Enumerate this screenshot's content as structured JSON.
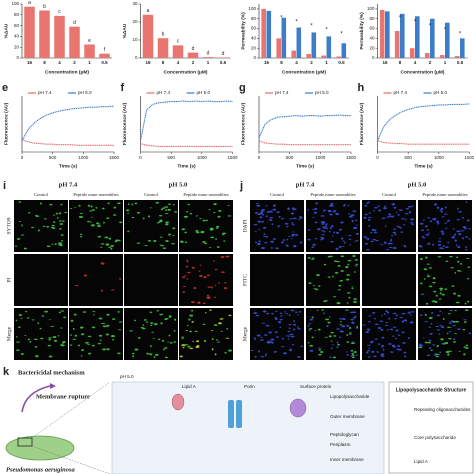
{
  "chart_data": [
    {
      "type": "bar",
      "y_label": "%ΔAU",
      "x_label": "Concentration (μM)",
      "categories": [
        "16",
        "8",
        "4",
        "2",
        "1",
        "0.5"
      ],
      "values": [
        95,
        88,
        78,
        58,
        25,
        8
      ],
      "annotations": [
        "a",
        "b",
        "c",
        "d",
        "e",
        "f"
      ],
      "color": "#e8756f",
      "ylim": [
        0,
        100
      ],
      "yticks": [
        0,
        20,
        40,
        60,
        80,
        100
      ]
    },
    {
      "type": "bar",
      "y_label": "%ΔAU",
      "x_label": "Concentration (μM)",
      "categories": [
        "16",
        "8",
        "4",
        "2",
        "1",
        "0.5"
      ],
      "values": [
        24,
        11,
        7,
        3,
        0.5,
        0.3
      ],
      "annotations": [
        "a",
        "b",
        "c",
        "d",
        "d",
        "d"
      ],
      "color": "#e8756f",
      "ylim": [
        0,
        30
      ],
      "yticks": [
        0,
        10,
        20,
        30
      ]
    },
    {
      "type": "groupbar",
      "y_label": "Permeability (%)",
      "x_label": "Concentration (μM)",
      "categories": [
        "16",
        "8",
        "4",
        "2",
        "1",
        "0.5"
      ],
      "series": [
        {
          "color": "#e8756f",
          "values": [
            100,
            40,
            15,
            8,
            5,
            3
          ]
        },
        {
          "color": "#3d7cc9",
          "values": [
            96,
            82,
            62,
            52,
            44,
            30
          ]
        }
      ],
      "annotations": [
        "*",
        "*",
        "*",
        "*",
        "*"
      ],
      "ylim": [
        0,
        110
      ],
      "yticks": [
        0,
        20,
        40,
        60,
        80,
        100
      ]
    },
    {
      "type": "groupbar",
      "y_label": "Permeability (%)",
      "x_label": "Concentration (μM)",
      "categories": [
        "16",
        "8",
        "4",
        "2",
        "1",
        "0.5"
      ],
      "series": [
        {
          "color": "#e8756f",
          "values": [
            98,
            55,
            20,
            10,
            6,
            4
          ]
        },
        {
          "color": "#3d7cc9",
          "values": [
            95,
            90,
            85,
            80,
            72,
            40
          ]
        }
      ],
      "annotations": [
        "*",
        "*",
        "*",
        "*",
        "*"
      ],
      "ylim": [
        0,
        110
      ],
      "yticks": [
        0,
        20,
        40,
        60,
        80,
        100
      ]
    },
    {
      "type": "line",
      "panel_label": "e",
      "y_label": "Fluorescence (AU)",
      "x_label": "Time (s)",
      "x": [
        0,
        100,
        200,
        300,
        400,
        500,
        600,
        700,
        800,
        900,
        1000,
        1100,
        1200,
        1300,
        1400,
        1500
      ],
      "series": [
        {
          "name": "pH 7.4",
          "color": "#e26a6a",
          "values": [
            22,
            18,
            16,
            15,
            14,
            14,
            13,
            13,
            13,
            12,
            12,
            12,
            12,
            12,
            12,
            12
          ]
        },
        {
          "name": "pH 5.0",
          "color": "#3d7cc9",
          "values": [
            20,
            40,
            52,
            60,
            66,
            70,
            73,
            75,
            77,
            78,
            79,
            80,
            80,
            81,
            81,
            82
          ]
        }
      ],
      "xlim": [
        0,
        1500
      ],
      "xticks": [
        0,
        500,
        1000,
        1500
      ],
      "ylim": [
        0,
        100
      ]
    },
    {
      "type": "line",
      "panel_label": "f",
      "y_label": "Fluorescence (AU)",
      "x_label": "Time (s)",
      "x": [
        0,
        100,
        200,
        300,
        400,
        500,
        600,
        700,
        800,
        900,
        1000,
        1100,
        1200,
        1300,
        1400,
        1500
      ],
      "series": [
        {
          "name": "pH 7.4",
          "color": "#e26a6a",
          "values": [
            15,
            12,
            11,
            10,
            10,
            10,
            10,
            10,
            10,
            10,
            10,
            10,
            10,
            10,
            10,
            10
          ]
        },
        {
          "name": "pH 5.0",
          "color": "#3d7cc9",
          "values": [
            20,
            75,
            85,
            88,
            89,
            90,
            90,
            91,
            90,
            91,
            90,
            91,
            90,
            90,
            91,
            90
          ]
        }
      ],
      "xlim": [
        0,
        1500
      ],
      "xticks": [
        0,
        500,
        1000,
        1500
      ],
      "ylim": [
        0,
        100
      ]
    },
    {
      "type": "line",
      "panel_label": "g",
      "y_label": "Fluorescence (AU)",
      "x_label": "Time (s)",
      "x": [
        0,
        100,
        200,
        300,
        400,
        500,
        600,
        700,
        800,
        900,
        1000,
        1100,
        1200,
        1300,
        1400,
        1500
      ],
      "series": [
        {
          "name": "pH 7.4",
          "color": "#e26a6a",
          "values": [
            20,
            16,
            15,
            14,
            14,
            13,
            13,
            13,
            13,
            13,
            13,
            13,
            13,
            13,
            13,
            13
          ]
        },
        {
          "name": "pH 5.0",
          "color": "#3d7cc9",
          "values": [
            25,
            50,
            58,
            62,
            63,
            64,
            65,
            64,
            65,
            65,
            64,
            65,
            65,
            66,
            65,
            65
          ]
        }
      ],
      "xlim": [
        0,
        1500
      ],
      "xticks": [
        0,
        500,
        1000,
        1500
      ],
      "ylim": [
        0,
        100
      ]
    },
    {
      "type": "line",
      "panel_label": "h",
      "y_label": "Fluorescence (AU)",
      "x_label": "Time (s)",
      "x": [
        0,
        100,
        200,
        300,
        400,
        500,
        600,
        700,
        800,
        900,
        1000,
        1100,
        1200,
        1300,
        1400,
        1500
      ],
      "series": [
        {
          "name": "pH 7.4",
          "color": "#e26a6a",
          "values": [
            20,
            17,
            16,
            15,
            15,
            14,
            14,
            14,
            14,
            14,
            14,
            14,
            14,
            14,
            14,
            14
          ]
        },
        {
          "name": "pH 5.0",
          "color": "#3d7cc9",
          "values": [
            20,
            45,
            58,
            66,
            72,
            76,
            79,
            81,
            82,
            83,
            84,
            84,
            85,
            85,
            85,
            86
          ]
        }
      ],
      "xlim": [
        0,
        1500
      ],
      "xticks": [
        0,
        500,
        1000,
        1500
      ],
      "ylim": [
        0,
        100
      ]
    }
  ],
  "panel_i": {
    "label": "i",
    "groups": [
      "pH 7.4",
      "pH 5.0"
    ],
    "columns": [
      "Control",
      "Peptide nano-assemblies",
      "Control",
      "Peptide nano-assemblies"
    ],
    "rows": [
      "SYTO9",
      "PI",
      "Merge"
    ]
  },
  "panel_j": {
    "label": "j",
    "groups": [
      "pH 7.4",
      "pH 5.0"
    ],
    "columns": [
      "Control",
      "Peptide nano-assemblies",
      "Control",
      "Peptide nano-assemblies"
    ],
    "rows": [
      "DAPI",
      "FITC",
      "Merge"
    ]
  },
  "panel_k": {
    "label": "k",
    "title": "Bactericidal mechanism",
    "step": "Membrane rupture",
    "organism": "Pseudomonas aeruginosa",
    "ph": "pH 5.0",
    "labels": [
      "Lipid A",
      "Porin",
      "Surface protein",
      "Lipopolysaccharide",
      "Outer membrane",
      "Peptidoglycan",
      "Periplasm",
      "Inner membrane"
    ],
    "structure_title": "Lipopolysaccharide Structure",
    "structure_labels": [
      "Repeating oligosaccharides",
      "Core polysaccharide",
      "Lipid A"
    ]
  }
}
